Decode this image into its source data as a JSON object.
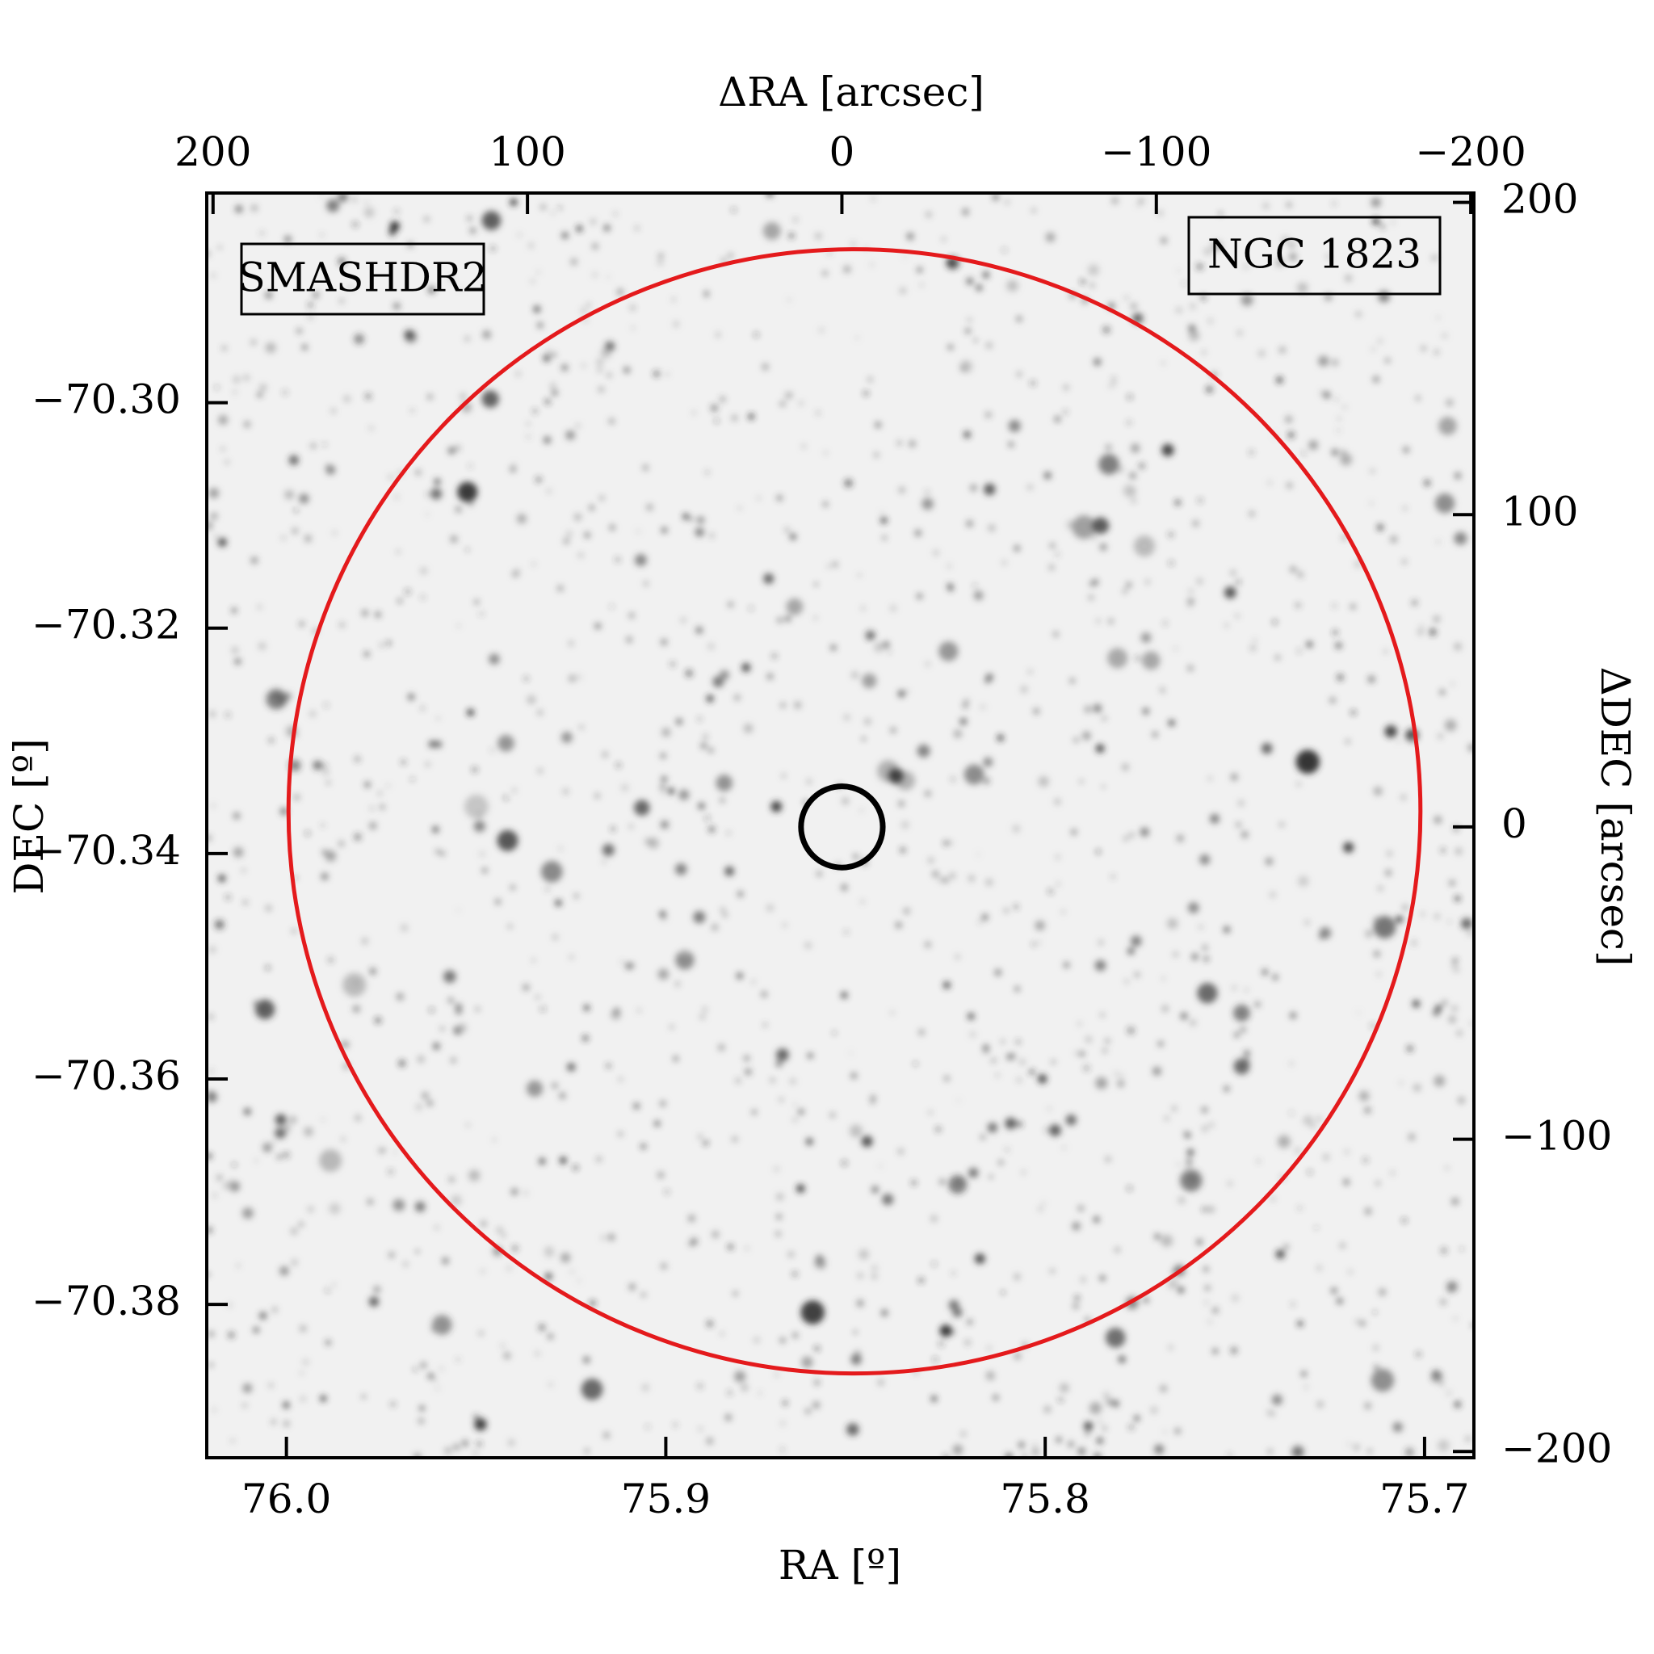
{
  "chart_data": {
    "type": "image",
    "xlabel": "RA [º]",
    "ylabel": "DEC [º]",
    "x2label": "ΔRA [arcsec]",
    "y2label": "ΔDEC [arcsec]",
    "xlim": [
      76.021,
      75.687
    ],
    "xticks": [
      {
        "value": 76.0,
        "label": "76.0"
      },
      {
        "value": 75.9,
        "label": "75.9"
      },
      {
        "value": 75.8,
        "label": "75.8"
      },
      {
        "value": 75.7,
        "label": "75.7"
      }
    ],
    "ylim": [
      -70.3936,
      -70.2814
    ],
    "yticks": [
      {
        "value": -70.3,
        "label": "−70.30"
      },
      {
        "value": -70.32,
        "label": "−70.32"
      },
      {
        "value": -70.34,
        "label": "−70.34"
      },
      {
        "value": -70.36,
        "label": "−70.36"
      },
      {
        "value": -70.38,
        "label": "−70.38"
      }
    ],
    "x2lim": [
      202,
      -201
    ],
    "x2ticks": [
      200,
      100,
      0,
      {
        "value": -100,
        "label": "−100"
      },
      {
        "value": -200,
        "label": "−200"
      }
    ],
    "y2lim": [
      -202,
      203
    ],
    "y2ticks": [
      200,
      100,
      0,
      {
        "value": -100,
        "label": "−100"
      },
      {
        "value": -200,
        "label": "−200"
      }
    ],
    "circles": [
      {
        "x": -4,
        "y": 5,
        "r": 180,
        "color": "#e41a1c",
        "axis": "y2"
      },
      {
        "x": 0,
        "y": 0,
        "r": 13,
        "color": "#000000",
        "axis": "y2"
      }
    ],
    "annotations": [
      {
        "text": "SMASHDR2",
        "color": "#ff0000",
        "corner": "top-left"
      },
      {
        "text": "NGC 1823",
        "color": "#000000",
        "corner": "top-right"
      }
    ]
  }
}
